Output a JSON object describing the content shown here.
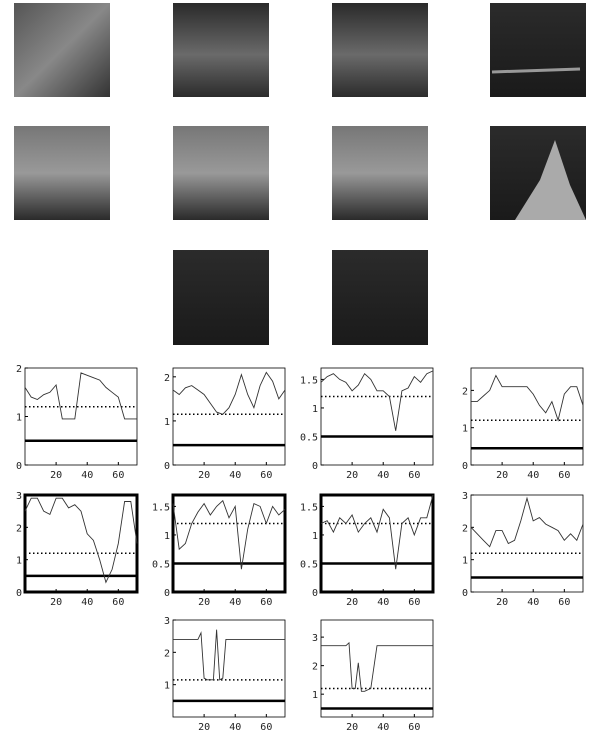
{
  "chart_data": [
    {
      "type": "line",
      "x": [
        0,
        4,
        8,
        12,
        16,
        20,
        24,
        28,
        32,
        36,
        40,
        44,
        48,
        52,
        56,
        60,
        64,
        68,
        72
      ],
      "values": [
        1.6,
        1.4,
        1.35,
        1.45,
        1.5,
        1.65,
        0.95,
        0.95,
        0.95,
        1.9,
        1.85,
        1.8,
        1.75,
        1.6,
        1.5,
        1.4,
        0.95,
        0.95,
        0.95
      ],
      "dotted_level": 1.2,
      "solid_level": 0.5,
      "xlim": [
        0,
        72
      ],
      "ylim": [
        0,
        2
      ],
      "xticks": [
        20,
        40,
        60
      ],
      "yticks": [
        0,
        1,
        2
      ],
      "highlight": false
    },
    {
      "type": "line",
      "x": [
        0,
        4,
        8,
        12,
        16,
        20,
        24,
        28,
        32,
        36,
        40,
        44,
        48,
        52,
        56,
        60,
        64,
        68,
        72
      ],
      "values": [
        1.7,
        1.6,
        1.75,
        1.8,
        1.7,
        1.6,
        1.4,
        1.2,
        1.15,
        1.3,
        1.6,
        2.05,
        1.6,
        1.3,
        1.8,
        2.1,
        1.9,
        1.5,
        1.7
      ],
      "dotted_level": 1.15,
      "solid_level": 0.45,
      "xlim": [
        0,
        72
      ],
      "ylim": [
        0,
        2.2
      ],
      "xticks": [
        20,
        40,
        60
      ],
      "yticks": [
        0,
        1,
        2
      ],
      "highlight": false
    },
    {
      "type": "line",
      "x": [
        0,
        4,
        8,
        12,
        16,
        20,
        24,
        28,
        32,
        36,
        40,
        44,
        48,
        52,
        56,
        60,
        64,
        68,
        72
      ],
      "values": [
        1.45,
        1.55,
        1.6,
        1.5,
        1.45,
        1.3,
        1.4,
        1.6,
        1.5,
        1.3,
        1.3,
        1.2,
        0.6,
        1.3,
        1.35,
        1.55,
        1.45,
        1.6,
        1.65
      ],
      "dotted_level": 1.2,
      "solid_level": 0.5,
      "xlim": [
        0,
        72
      ],
      "ylim": [
        0,
        1.7
      ],
      "xticks": [
        20,
        40,
        60
      ],
      "yticks": [
        0,
        0.5,
        1,
        1.5
      ],
      "highlight": false
    },
    {
      "type": "line",
      "x": [
        0,
        4,
        8,
        12,
        16,
        20,
        24,
        28,
        32,
        36,
        40,
        44,
        48,
        52,
        56,
        60,
        64,
        68,
        72
      ],
      "values": [
        1.7,
        1.7,
        1.85,
        2.0,
        2.4,
        2.1,
        2.1,
        2.1,
        2.1,
        2.1,
        1.9,
        1.6,
        1.4,
        1.7,
        1.2,
        1.9,
        2.1,
        2.1,
        1.6
      ],
      "dotted_level": 1.2,
      "solid_level": 0.45,
      "xlim": [
        0,
        72
      ],
      "ylim": [
        0,
        2.6
      ],
      "xticks": [
        20,
        40,
        60
      ],
      "yticks": [
        0,
        1,
        2
      ],
      "highlight": false
    },
    {
      "type": "line",
      "x": [
        0,
        4,
        8,
        12,
        16,
        20,
        24,
        28,
        32,
        36,
        40,
        44,
        48,
        52,
        56,
        60,
        64,
        68,
        72
      ],
      "values": [
        2.5,
        2.9,
        2.9,
        2.5,
        2.4,
        2.9,
        2.9,
        2.6,
        2.7,
        2.5,
        1.8,
        1.6,
        1.0,
        0.3,
        0.7,
        1.5,
        2.8,
        2.8,
        1.5
      ],
      "dotted_level": 1.2,
      "solid_level": 0.5,
      "xlim": [
        0,
        72
      ],
      "ylim": [
        0,
        3
      ],
      "xticks": [
        20,
        40,
        60
      ],
      "yticks": [
        0,
        1,
        2,
        3
      ],
      "highlight": true
    },
    {
      "type": "line",
      "x": [
        0,
        4,
        8,
        12,
        16,
        20,
        24,
        28,
        32,
        36,
        40,
        44,
        48,
        52,
        56,
        60,
        64,
        68,
        72
      ],
      "values": [
        1.55,
        0.75,
        0.85,
        1.2,
        1.4,
        1.55,
        1.35,
        1.5,
        1.6,
        1.3,
        1.5,
        0.4,
        1.1,
        1.55,
        1.5,
        1.2,
        1.5,
        1.35,
        1.45
      ],
      "dotted_level": 1.2,
      "solid_level": 0.5,
      "xlim": [
        0,
        72
      ],
      "ylim": [
        0,
        1.7
      ],
      "xticks": [
        20,
        40,
        60
      ],
      "yticks": [
        0,
        0.5,
        1,
        1.5
      ],
      "highlight": true
    },
    {
      "type": "line",
      "x": [
        0,
        4,
        8,
        12,
        16,
        20,
        24,
        28,
        32,
        36,
        40,
        44,
        48,
        52,
        56,
        60,
        64,
        68,
        72
      ],
      "values": [
        1.2,
        1.25,
        1.05,
        1.3,
        1.2,
        1.35,
        1.05,
        1.2,
        1.3,
        1.05,
        1.45,
        1.3,
        0.4,
        1.2,
        1.3,
        1.0,
        1.3,
        1.3,
        1.7
      ],
      "dotted_level": 1.2,
      "solid_level": 0.5,
      "xlim": [
        0,
        72
      ],
      "ylim": [
        0,
        1.7
      ],
      "xticks": [
        20,
        40,
        60
      ],
      "yticks": [
        0,
        0.5,
        1,
        1.5
      ],
      "highlight": true
    },
    {
      "type": "line",
      "x": [
        0,
        4,
        8,
        12,
        16,
        20,
        24,
        28,
        32,
        36,
        40,
        44,
        48,
        52,
        56,
        60,
        64,
        68,
        72
      ],
      "values": [
        2.0,
        1.8,
        1.6,
        1.4,
        1.9,
        1.9,
        1.5,
        1.6,
        2.2,
        2.9,
        2.2,
        2.3,
        2.1,
        2.0,
        1.9,
        1.6,
        1.8,
        1.6,
        2.1
      ],
      "dotted_level": 1.2,
      "solid_level": 0.45,
      "xlim": [
        0,
        72
      ],
      "ylim": [
        0,
        3
      ],
      "xticks": [
        20,
        40,
        60
      ],
      "yticks": [
        0,
        1,
        2,
        3
      ],
      "highlight": false
    },
    {
      "type": "line",
      "x": [
        0,
        4,
        8,
        12,
        16,
        18,
        20,
        22,
        26,
        28,
        30,
        32,
        34,
        36,
        40,
        44,
        48,
        52,
        56,
        60,
        64,
        68,
        72
      ],
      "values": [
        2.4,
        2.4,
        2.4,
        2.4,
        2.4,
        2.6,
        1.2,
        1.15,
        1.15,
        2.7,
        1.15,
        1.2,
        2.4,
        2.4,
        2.4,
        2.4,
        2.4,
        2.4,
        2.4,
        2.4,
        2.4,
        2.4,
        2.4
      ],
      "dotted_level": 1.15,
      "solid_level": 0.5,
      "xlim": [
        0,
        72
      ],
      "ylim": [
        0,
        3
      ],
      "xticks": [
        20,
        40,
        60
      ],
      "yticks": [
        1,
        2,
        3
      ],
      "highlight": false
    },
    {
      "type": "line",
      "x": [
        0,
        4,
        8,
        12,
        16,
        18,
        20,
        22,
        24,
        26,
        28,
        30,
        32,
        36,
        40,
        44,
        48,
        52,
        56,
        60,
        64,
        68,
        72
      ],
      "values": [
        2.7,
        2.7,
        2.7,
        2.7,
        2.7,
        2.8,
        1.2,
        1.2,
        2.1,
        1.1,
        1.1,
        1.15,
        1.2,
        2.7,
        2.7,
        2.7,
        2.7,
        2.7,
        2.7,
        2.7,
        2.7,
        2.7,
        2.7
      ],
      "dotted_level": 1.2,
      "solid_level": 0.5,
      "xlim": [
        0,
        72
      ],
      "ylim": [
        0.2,
        3.6
      ],
      "xticks": [
        20,
        40,
        60
      ],
      "yticks": [
        1,
        2,
        3
      ],
      "highlight": false
    }
  ]
}
